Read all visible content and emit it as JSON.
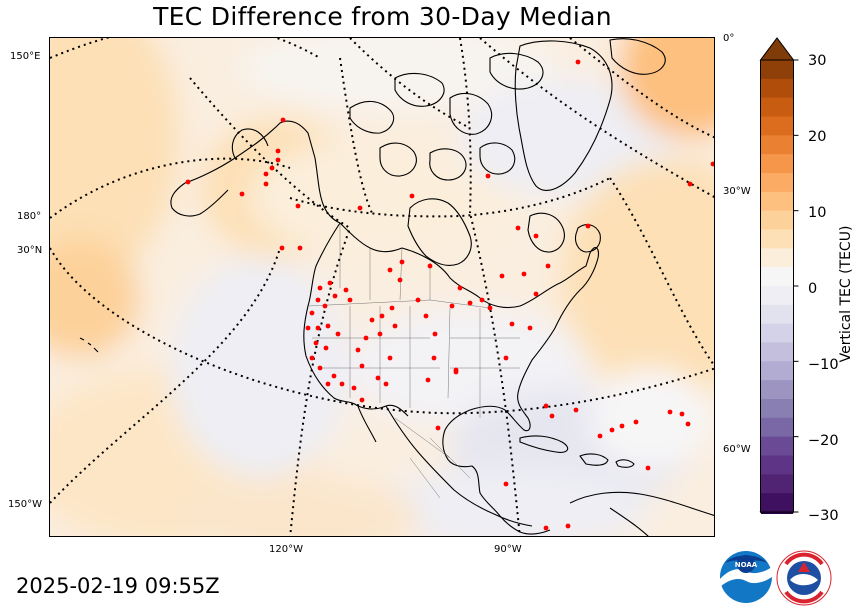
{
  "title": "TEC Difference from 30-Day Median",
  "timestamp": "2025-02-19 09:55Z",
  "map": {
    "projection": "polar stereographic",
    "region": "North America",
    "graticule_labels": {
      "left": [
        "150°E",
        "180°",
        "30°N",
        "150°W"
      ],
      "right": [
        "0°",
        "30°W",
        "60°W"
      ],
      "bottom": [
        "120°W",
        "90°W"
      ]
    },
    "station_marker_color": "#ff0000",
    "coastline_color": "#000000"
  },
  "colorbar": {
    "label": "Vertical TEC (TECU)",
    "ticks": [
      "30",
      "20",
      "10",
      "0",
      "−10",
      "−20",
      "−30"
    ],
    "min": -30,
    "max": 30,
    "step": 2.5,
    "colormap": "PuOr_r",
    "extend": "both",
    "colors": [
      "#2d004b",
      "#3f0f60",
      "#512373",
      "#5e3486",
      "#6a4a95",
      "#7967a6",
      "#8a7fb3",
      "#9d94c2",
      "#b2abd2",
      "#c3bfdd",
      "#d3d2e8",
      "#e2e2ef",
      "#eeeef4",
      "#f7f6f7",
      "#fbeedb",
      "#fde0b6",
      "#fdd19a",
      "#fdc07e",
      "#fbab63",
      "#f5964a",
      "#e98032",
      "#dc6d1e",
      "#c85c10",
      "#b04d0a",
      "#8f3f08",
      "#7f3b08"
    ]
  },
  "logos": [
    "noaa-logo",
    "nws-logo"
  ]
}
